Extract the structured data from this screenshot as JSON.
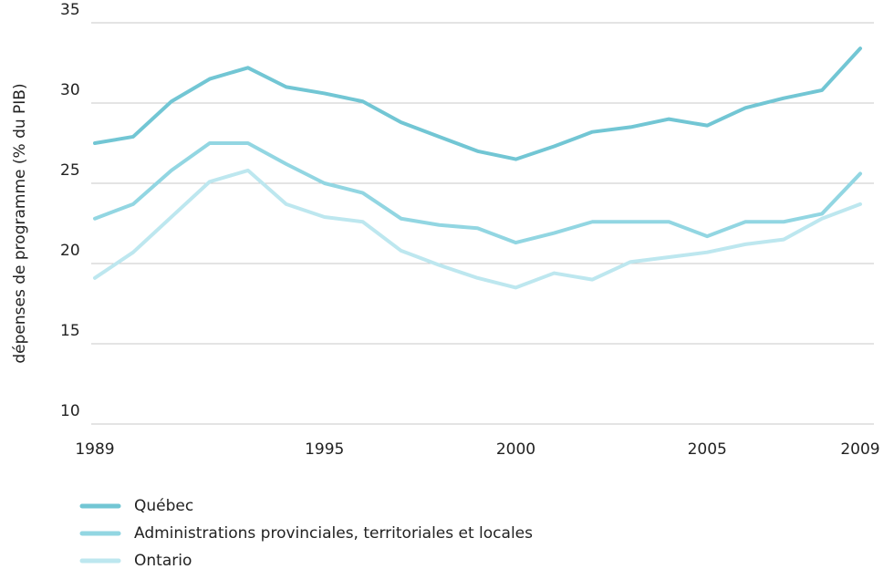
{
  "chart_data": {
    "type": "line",
    "y_label": "dépenses de programme (% du PIB)",
    "x": [
      1989,
      1990,
      1991,
      1992,
      1993,
      1994,
      1995,
      1996,
      1997,
      1998,
      1999,
      2000,
      2001,
      2002,
      2003,
      2004,
      2005,
      2006,
      2007,
      2008,
      2009
    ],
    "series": [
      {
        "name": "Québec",
        "color": "#72c6d4",
        "values": [
          27.5,
          27.9,
          30.1,
          31.5,
          32.2,
          31.0,
          30.6,
          30.1,
          28.8,
          27.9,
          27.0,
          26.5,
          27.3,
          28.2,
          28.5,
          29.0,
          28.6,
          29.7,
          30.3,
          30.8,
          33.4
        ]
      },
      {
        "name": "Administrations provinciales, territoriales et locales",
        "color": "#92d6e2",
        "values": [
          22.8,
          23.7,
          25.8,
          27.5,
          27.5,
          26.2,
          25.0,
          24.4,
          22.8,
          22.4,
          22.2,
          21.3,
          21.9,
          22.6,
          22.6,
          22.6,
          21.7,
          22.6,
          22.6,
          23.1,
          25.6
        ]
      },
      {
        "name": "Ontario",
        "color": "#bde7ef",
        "values": [
          19.1,
          20.7,
          22.9,
          25.1,
          25.8,
          23.7,
          22.9,
          22.6,
          20.8,
          19.9,
          19.1,
          18.5,
          19.4,
          19.0,
          20.1,
          20.4,
          20.7,
          21.2,
          21.5,
          22.8,
          23.7
        ]
      }
    ],
    "xlim": [
      1989,
      2009
    ],
    "xticks": [
      1989,
      1995,
      2000,
      2005,
      2009
    ],
    "ylim": [
      10,
      35
    ],
    "yticks": [
      10,
      15,
      20,
      25,
      30,
      35
    ],
    "grid": true,
    "legend": "bottom-left"
  }
}
